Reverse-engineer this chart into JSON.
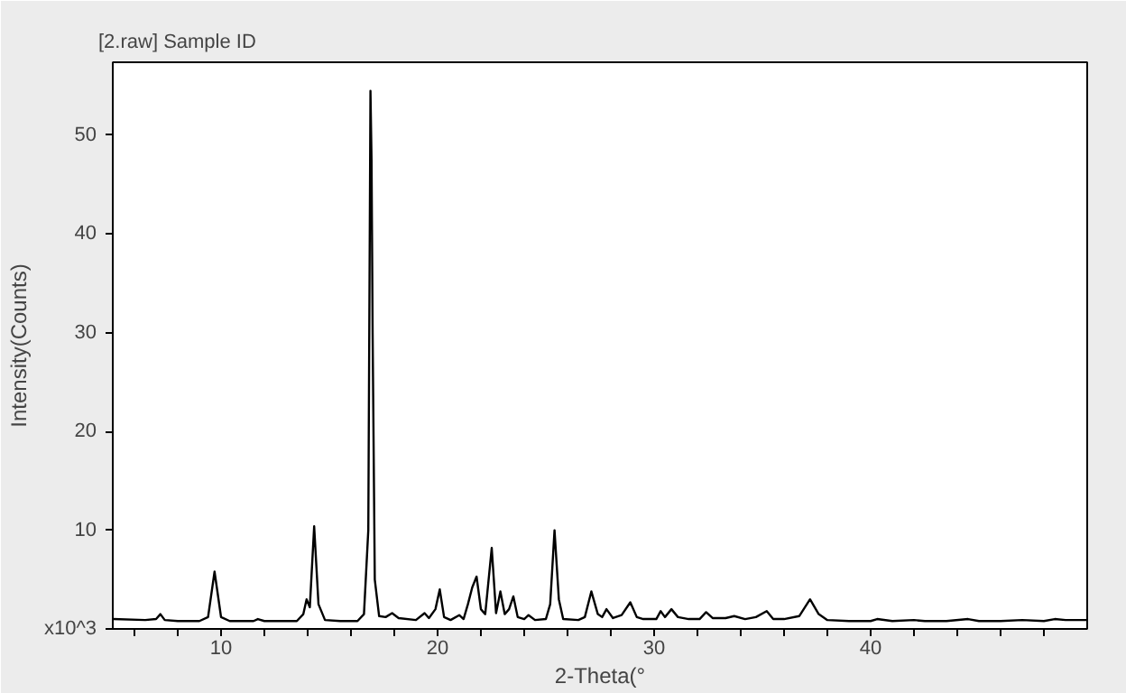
{
  "chart_data": {
    "type": "line",
    "title": "[2.raw] Sample ID",
    "xlabel": "2-Theta(°",
    "ylabel": "Intensity(Counts)",
    "x": [
      5.0,
      6.5,
      7.0,
      7.2,
      7.4,
      8.0,
      9.0,
      9.4,
      9.7,
      10.0,
      10.4,
      11.5,
      11.7,
      12.0,
      13.5,
      13.8,
      13.95,
      14.1,
      14.3,
      14.5,
      14.8,
      15.5,
      16.3,
      16.6,
      16.8,
      16.9,
      16.95,
      17.0,
      17.1,
      17.3,
      17.6,
      17.9,
      18.2,
      19.0,
      19.4,
      19.6,
      19.9,
      20.1,
      20.3,
      20.6,
      21.0,
      21.2,
      21.4,
      21.6,
      21.8,
      22.0,
      22.2,
      22.5,
      22.7,
      22.9,
      23.1,
      23.3,
      23.5,
      23.7,
      24.0,
      24.2,
      24.5,
      25.0,
      25.2,
      25.4,
      25.6,
      25.8,
      26.5,
      26.8,
      27.1,
      27.4,
      27.6,
      27.8,
      28.1,
      28.5,
      28.9,
      29.2,
      29.5,
      30.1,
      30.3,
      30.5,
      30.8,
      31.1,
      31.6,
      32.1,
      32.4,
      32.7,
      33.3,
      33.7,
      34.2,
      34.7,
      35.2,
      35.5,
      36.0,
      36.7,
      37.2,
      37.6,
      38.0,
      39.0,
      40.0,
      40.3,
      41.0,
      42.0,
      42.5,
      43.5,
      44.5,
      45.0,
      46.0,
      47.0,
      48.0,
      48.5,
      49.0,
      50.0
    ],
    "values": [
      1.0,
      0.9,
      1.0,
      1.5,
      0.9,
      0.8,
      0.8,
      1.2,
      5.8,
      1.2,
      0.8,
      0.8,
      1.0,
      0.8,
      0.8,
      1.5,
      3.0,
      2.2,
      10.4,
      2.5,
      0.9,
      0.8,
      0.8,
      1.5,
      10.0,
      54.5,
      47.5,
      30.0,
      5.0,
      1.3,
      1.2,
      1.6,
      1.1,
      0.9,
      1.6,
      1.1,
      2.0,
      4.0,
      1.2,
      0.9,
      1.4,
      1.0,
      2.5,
      4.2,
      5.3,
      2.0,
      1.5,
      8.2,
      1.6,
      3.8,
      1.5,
      2.0,
      3.3,
      1.2,
      1.0,
      1.4,
      0.9,
      1.0,
      2.5,
      10.0,
      3.0,
      1.0,
      0.9,
      1.2,
      3.8,
      1.5,
      1.2,
      2.0,
      1.1,
      1.4,
      2.7,
      1.2,
      1.0,
      1.0,
      1.8,
      1.2,
      2.0,
      1.2,
      1.0,
      1.0,
      1.7,
      1.1,
      1.1,
      1.3,
      1.0,
      1.2,
      1.8,
      1.0,
      1.0,
      1.3,
      3.0,
      1.5,
      0.9,
      0.8,
      0.8,
      1.0,
      0.8,
      0.9,
      0.8,
      0.8,
      1.0,
      0.8,
      0.8,
      0.9,
      0.8,
      1.0,
      0.9,
      0.9
    ],
    "color": "#000000",
    "line_style": "solid",
    "marker": "none",
    "grid": false,
    "xlim": [
      5,
      50
    ],
    "ylim": [
      0,
      57.4
    ],
    "xticks": [
      {
        "value": 6,
        "label": null
      },
      {
        "value": 8,
        "label": null
      },
      10,
      {
        "value": 12,
        "label": null
      },
      {
        "value": 14,
        "label": null
      },
      {
        "value": 16,
        "label": null
      },
      {
        "value": 18,
        "label": null
      },
      20,
      {
        "value": 22,
        "label": null
      },
      {
        "value": 24,
        "label": null
      },
      {
        "value": 26,
        "label": null
      },
      {
        "value": 28,
        "label": null
      },
      30,
      {
        "value": 32,
        "label": null
      },
      {
        "value": 34,
        "label": null
      },
      {
        "value": 36,
        "label": null
      },
      {
        "value": 38,
        "label": null
      },
      40,
      {
        "value": 42,
        "label": null
      },
      {
        "value": 44,
        "label": null
      },
      {
        "value": 46,
        "label": null
      },
      {
        "value": 48,
        "label": null
      }
    ],
    "yticks": [
      {
        "value": 0,
        "label": "x10^3"
      },
      10,
      20,
      30,
      40,
      50
    ]
  }
}
